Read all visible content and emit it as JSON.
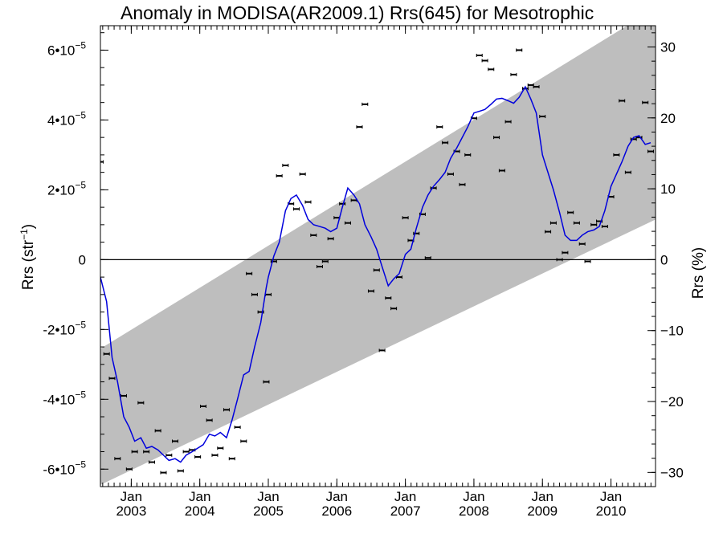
{
  "chart_data": {
    "type": "scatter",
    "title": "Anomaly in MODISA(AR2009.1) Rrs(645) for Mesotrophic",
    "ylabel_left_base": "Rrs (str",
    "ylabel_left_sup": "−1",
    "ylabel_left_close": ")",
    "ylabel_right": "Rrs (%)",
    "xlim": [
      2002.55,
      2010.65
    ],
    "ylim_left": [
      -6.5e-05,
      6.7e-05
    ],
    "ylim_right": [
      -32,
      33
    ],
    "left_ticks": [
      {
        "value": 6e-05,
        "base": "6•10",
        "exp": "−5"
      },
      {
        "value": 4e-05,
        "base": "4•10",
        "exp": "−5"
      },
      {
        "value": 2e-05,
        "base": "2•10",
        "exp": "−5"
      },
      {
        "value": 0,
        "base": "0",
        "exp": ""
      },
      {
        "value": -2e-05,
        "base": "-2•10",
        "exp": "−5"
      },
      {
        "value": -4e-05,
        "base": "-4•10",
        "exp": "−5"
      },
      {
        "value": -6e-05,
        "base": "-6•10",
        "exp": "−5"
      }
    ],
    "right_ticks": [
      {
        "value": 30,
        "label": "30"
      },
      {
        "value": 20,
        "label": "20"
      },
      {
        "value": 10,
        "label": "10"
      },
      {
        "value": 0,
        "label": "0"
      },
      {
        "value": -10,
        "label": "−10"
      },
      {
        "value": -20,
        "label": "−20"
      },
      {
        "value": -30,
        "label": "−30"
      }
    ],
    "x_ticks": [
      {
        "value": 2003,
        "month": "Jan",
        "year": "2003"
      },
      {
        "value": 2004,
        "month": "Jan",
        "year": "2004"
      },
      {
        "value": 2005,
        "month": "Jan",
        "year": "2005"
      },
      {
        "value": 2006,
        "month": "Jan",
        "year": "2006"
      },
      {
        "value": 2007,
        "month": "Jan",
        "year": "2007"
      },
      {
        "value": 2008,
        "month": "Jan",
        "year": "2008"
      },
      {
        "value": 2009,
        "month": "Jan",
        "year": "2009"
      },
      {
        "value": 2010,
        "month": "Jan",
        "year": "2010"
      }
    ],
    "band": {
      "x": [
        2002.55,
        2010.65
      ],
      "upper": [
        -2.55e-05,
        7.2e-05
      ],
      "lower": [
        -6.45e-05,
        1.15e-05
      ],
      "color": "#bebebe"
    },
    "zero_line": 0,
    "series": [
      {
        "type": "points",
        "color": "#000000",
        "points": [
          [
            2002.55,
            2.8e-05
          ],
          [
            2002.64,
            -2.7e-05
          ],
          [
            2002.72,
            -3.4e-05
          ],
          [
            2002.8,
            -5.7e-05
          ],
          [
            2002.89,
            -3.9e-05
          ],
          [
            2002.97,
            -6e-05
          ],
          [
            2003.05,
            -5.5e-05
          ],
          [
            2003.14,
            -4.1e-05
          ],
          [
            2003.22,
            -5.5e-05
          ],
          [
            2003.3,
            -5.8e-05
          ],
          [
            2003.39,
            -4.9e-05
          ],
          [
            2003.47,
            -6.1e-05
          ],
          [
            2003.55,
            -5.6e-05
          ],
          [
            2003.64,
            -5.2e-05
          ],
          [
            2003.72,
            -6.05e-05
          ],
          [
            2003.8,
            -5.5e-05
          ],
          [
            2003.89,
            -5.45e-05
          ],
          [
            2003.97,
            -5.65e-05
          ],
          [
            2004.05,
            -4.2e-05
          ],
          [
            2004.14,
            -4.6e-05
          ],
          [
            2004.22,
            -5.6e-05
          ],
          [
            2004.3,
            -5.4e-05
          ],
          [
            2004.39,
            -4.3e-05
          ],
          [
            2004.47,
            -5.7e-05
          ],
          [
            2004.55,
            -4.8e-05
          ],
          [
            2004.64,
            -5.2e-05
          ],
          [
            2004.72,
            -4e-06
          ],
          [
            2004.8,
            -1e-05
          ],
          [
            2004.89,
            -1.5e-05
          ],
          [
            2004.97,
            -3.5e-05
          ],
          [
            2005.0,
            -1e-05
          ],
          [
            2005.08,
            -5e-07
          ],
          [
            2005.16,
            2.4e-05
          ],
          [
            2005.25,
            2.7e-05
          ],
          [
            2005.33,
            1.6e-05
          ],
          [
            2005.41,
            1.45e-05
          ],
          [
            2005.5,
            2.45e-05
          ],
          [
            2005.58,
            1.65e-05
          ],
          [
            2005.66,
            7e-06
          ],
          [
            2005.75,
            -2e-06
          ],
          [
            2005.83,
            -5e-07
          ],
          [
            2005.91,
            6e-06
          ],
          [
            2006.0,
            1.2e-05
          ],
          [
            2006.08,
            1.6e-05
          ],
          [
            2006.16,
            1.05e-05
          ],
          [
            2006.25,
            1.7e-05
          ],
          [
            2006.33,
            3.8e-05
          ],
          [
            2006.41,
            4.45e-05
          ],
          [
            2006.5,
            -9e-06
          ],
          [
            2006.58,
            -3e-06
          ],
          [
            2006.66,
            -2.6e-05
          ],
          [
            2006.75,
            -1.1e-05
          ],
          [
            2006.83,
            -1.4e-05
          ],
          [
            2006.91,
            -5e-06
          ],
          [
            2007.0,
            1.2e-05
          ],
          [
            2007.08,
            5.5e-06
          ],
          [
            2007.16,
            7.5e-06
          ],
          [
            2007.25,
            1.3e-05
          ],
          [
            2007.33,
            5e-07
          ],
          [
            2007.41,
            2.05e-05
          ],
          [
            2007.5,
            3.8e-05
          ],
          [
            2007.58,
            3.35e-05
          ],
          [
            2007.66,
            2.45e-05
          ],
          [
            2007.75,
            3.1e-05
          ],
          [
            2007.83,
            2.15e-05
          ],
          [
            2007.91,
            3e-05
          ],
          [
            2008.0,
            4.05e-05
          ],
          [
            2008.08,
            5.85e-05
          ],
          [
            2008.16,
            5.7e-05
          ],
          [
            2008.25,
            5.45e-05
          ],
          [
            2008.33,
            3.5e-05
          ],
          [
            2008.41,
            2.55e-05
          ],
          [
            2008.5,
            3.95e-05
          ],
          [
            2008.58,
            5.3e-05
          ],
          [
            2008.66,
            6e-05
          ],
          [
            2008.75,
            4.9e-05
          ],
          [
            2008.83,
            5e-05
          ],
          [
            2008.91,
            4.95e-05
          ],
          [
            2009.0,
            4.1e-05
          ],
          [
            2009.08,
            8e-06
          ],
          [
            2009.16,
            1.05e-05
          ],
          [
            2009.25,
            0.0
          ],
          [
            2009.33,
            2e-06
          ],
          [
            2009.41,
            1.35e-05
          ],
          [
            2009.5,
            1.05e-05
          ],
          [
            2009.58,
            4.5e-06
          ],
          [
            2009.66,
            -5e-07
          ],
          [
            2009.75,
            1e-05
          ],
          [
            2009.83,
            1.1e-05
          ],
          [
            2009.91,
            9.5e-06
          ],
          [
            2010.0,
            1.8e-05
          ],
          [
            2010.08,
            3e-05
          ],
          [
            2010.16,
            4.55e-05
          ],
          [
            2010.25,
            2.5e-05
          ],
          [
            2010.33,
            3.45e-05
          ],
          [
            2010.41,
            3.5e-05
          ],
          [
            2010.5,
            4.5e-05
          ],
          [
            2010.58,
            3.1e-05
          ]
        ]
      },
      {
        "type": "line",
        "color": "#0000dd",
        "points": [
          [
            2002.55,
            -5e-06
          ],
          [
            2002.64,
            -1.2e-05
          ],
          [
            2002.72,
            -2.8e-05
          ],
          [
            2002.8,
            -3.5e-05
          ],
          [
            2002.89,
            -4.5e-05
          ],
          [
            2002.97,
            -4.8e-05
          ],
          [
            2003.05,
            -5.2e-05
          ],
          [
            2003.14,
            -5.1e-05
          ],
          [
            2003.22,
            -5.4e-05
          ],
          [
            2003.3,
            -5.35e-05
          ],
          [
            2003.39,
            -5.45e-05
          ],
          [
            2003.47,
            -5.6e-05
          ],
          [
            2003.55,
            -5.75e-05
          ],
          [
            2003.64,
            -5.7e-05
          ],
          [
            2003.72,
            -5.8e-05
          ],
          [
            2003.8,
            -5.6e-05
          ],
          [
            2003.89,
            -5.5e-05
          ],
          [
            2003.97,
            -5.4e-05
          ],
          [
            2004.05,
            -5.3e-05
          ],
          [
            2004.14,
            -5e-05
          ],
          [
            2004.22,
            -5.05e-05
          ],
          [
            2004.3,
            -4.95e-05
          ],
          [
            2004.39,
            -5.1e-05
          ],
          [
            2004.47,
            -4.6e-05
          ],
          [
            2004.55,
            -4e-05
          ],
          [
            2004.64,
            -3.3e-05
          ],
          [
            2004.72,
            -3.2e-05
          ],
          [
            2004.8,
            -2.5e-05
          ],
          [
            2004.89,
            -1.8e-05
          ],
          [
            2004.97,
            -8e-06
          ],
          [
            2005.0,
            -5e-06
          ],
          [
            2005.08,
            1e-06
          ],
          [
            2005.16,
            5e-06
          ],
          [
            2005.25,
            1.4e-05
          ],
          [
            2005.33,
            1.75e-05
          ],
          [
            2005.41,
            1.85e-05
          ],
          [
            2005.5,
            1.55e-05
          ],
          [
            2005.58,
            1.15e-05
          ],
          [
            2005.66,
            1e-05
          ],
          [
            2005.75,
            9.5e-06
          ],
          [
            2005.83,
            9e-06
          ],
          [
            2005.91,
            8e-06
          ],
          [
            2006.0,
            9e-06
          ],
          [
            2006.08,
            1.5e-05
          ],
          [
            2006.16,
            2.05e-05
          ],
          [
            2006.25,
            1.85e-05
          ],
          [
            2006.33,
            1.6e-05
          ],
          [
            2006.41,
            1e-05
          ],
          [
            2006.5,
            6.5e-06
          ],
          [
            2006.58,
            3e-06
          ],
          [
            2006.66,
            -2e-06
          ],
          [
            2006.75,
            -7.5e-06
          ],
          [
            2006.83,
            -5.5e-06
          ],
          [
            2006.91,
            -4e-06
          ],
          [
            2007.0,
            1.5e-06
          ],
          [
            2007.08,
            3e-06
          ],
          [
            2007.16,
            9e-06
          ],
          [
            2007.25,
            1.5e-05
          ],
          [
            2007.33,
            1.85e-05
          ],
          [
            2007.41,
            2.1e-05
          ],
          [
            2007.5,
            2.3e-05
          ],
          [
            2007.58,
            2.5e-05
          ],
          [
            2007.66,
            2.9e-05
          ],
          [
            2007.75,
            3.2e-05
          ],
          [
            2007.83,
            3.5e-05
          ],
          [
            2007.91,
            3.8e-05
          ],
          [
            2008.0,
            4.2e-05
          ],
          [
            2008.08,
            4.25e-05
          ],
          [
            2008.16,
            4.3e-05
          ],
          [
            2008.25,
            4.45e-05
          ],
          [
            2008.33,
            4.6e-05
          ],
          [
            2008.41,
            4.62e-05
          ],
          [
            2008.5,
            4.55e-05
          ],
          [
            2008.58,
            4.48e-05
          ],
          [
            2008.66,
            4.65e-05
          ],
          [
            2008.75,
            4.95e-05
          ],
          [
            2008.83,
            4.6e-05
          ],
          [
            2008.91,
            4.2e-05
          ],
          [
            2009.0,
            3e-05
          ],
          [
            2009.08,
            2.5e-05
          ],
          [
            2009.16,
            2e-05
          ],
          [
            2009.25,
            1.35e-05
          ],
          [
            2009.33,
            7e-06
          ],
          [
            2009.41,
            5.5e-06
          ],
          [
            2009.5,
            5.5e-06
          ],
          [
            2009.58,
            7e-06
          ],
          [
            2009.66,
            8e-06
          ],
          [
            2009.75,
            8.5e-06
          ],
          [
            2009.83,
            9.5e-06
          ],
          [
            2009.91,
            1.4e-05
          ],
          [
            2010.0,
            2.1e-05
          ],
          [
            2010.08,
            2.45e-05
          ],
          [
            2010.16,
            2.8e-05
          ],
          [
            2010.25,
            3.25e-05
          ],
          [
            2010.33,
            3.5e-05
          ],
          [
            2010.41,
            3.55e-05
          ],
          [
            2010.5,
            3.3e-05
          ],
          [
            2010.58,
            3.35e-05
          ]
        ]
      }
    ]
  }
}
